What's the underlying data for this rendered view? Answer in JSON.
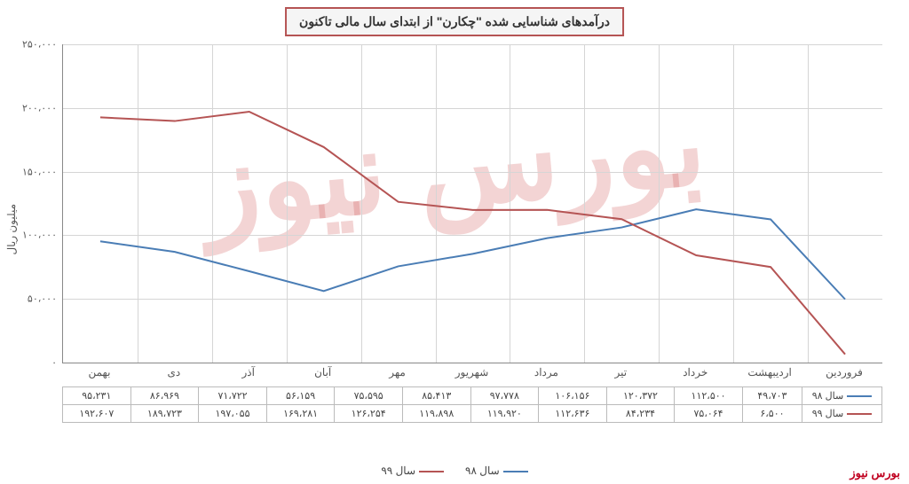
{
  "title": "درآمدهای شناسایی شده \"چکارن\" از ابتدای سال مالی تاکنون",
  "watermark_text": "بورس نیوز",
  "brand_text": "بورس نیوز",
  "chart": {
    "type": "line",
    "background_color": "#ffffff",
    "grid_color": "#d5d5d5",
    "border_color": "#888888",
    "title_border_color": "#b55454",
    "ylabel": "میلیون ریال",
    "ylim": [
      0,
      250000
    ],
    "ytick_step": 50000,
    "yticks": [
      "۰",
      "۵۰،۰۰۰",
      "۱۰۰،۰۰۰",
      "۱۵۰،۰۰۰",
      "۲۰۰،۰۰۰",
      "۲۵۰،۰۰۰"
    ],
    "categories": [
      "فروردین",
      "اردیبهشت",
      "خرداد",
      "تیر",
      "مرداد",
      "شهریور",
      "مهر",
      "آبان",
      "آذر",
      "دی",
      "بهمن"
    ],
    "series": [
      {
        "name": "سال ۹۸",
        "color": "#4a7db5",
        "line_width": 2,
        "values": [
          49703,
          112500,
          120372,
          106156,
          97778,
          85413,
          75595,
          56159,
          71722,
          86969,
          95231
        ],
        "display": [
          "۴۹،۷۰۳",
          "۱۱۲،۵۰۰",
          "۱۲۰،۳۷۲",
          "۱۰۶،۱۵۶",
          "۹۷،۷۷۸",
          "۸۵،۴۱۳",
          "۷۵،۵۹۵",
          "۵۶،۱۵۹",
          "۷۱،۷۲۲",
          "۸۶،۹۶۹",
          "۹۵،۲۳۱"
        ]
      },
      {
        "name": "سال ۹۹",
        "color": "#b55454",
        "line_width": 2,
        "values": [
          6500,
          75064,
          84234,
          112636,
          119920,
          119898,
          126254,
          169281,
          197055,
          189723,
          192607
        ],
        "display": [
          "۶،۵۰۰",
          "۷۵،۰۶۴",
          "۸۴،۲۳۴",
          "۱۱۲،۶۳۶",
          "۱۱۹،۹۲۰",
          "۱۱۹،۸۹۸",
          "۱۲۶،۲۵۴",
          "۱۶۹،۲۸۱",
          "۱۹۷،۰۵۵",
          "۱۸۹،۷۲۳",
          "۱۹۲،۶۰۷"
        ]
      }
    ],
    "legend_position": "bottom",
    "label_fontsize": 12,
    "tick_fontsize": 11,
    "title_fontsize": 14
  }
}
